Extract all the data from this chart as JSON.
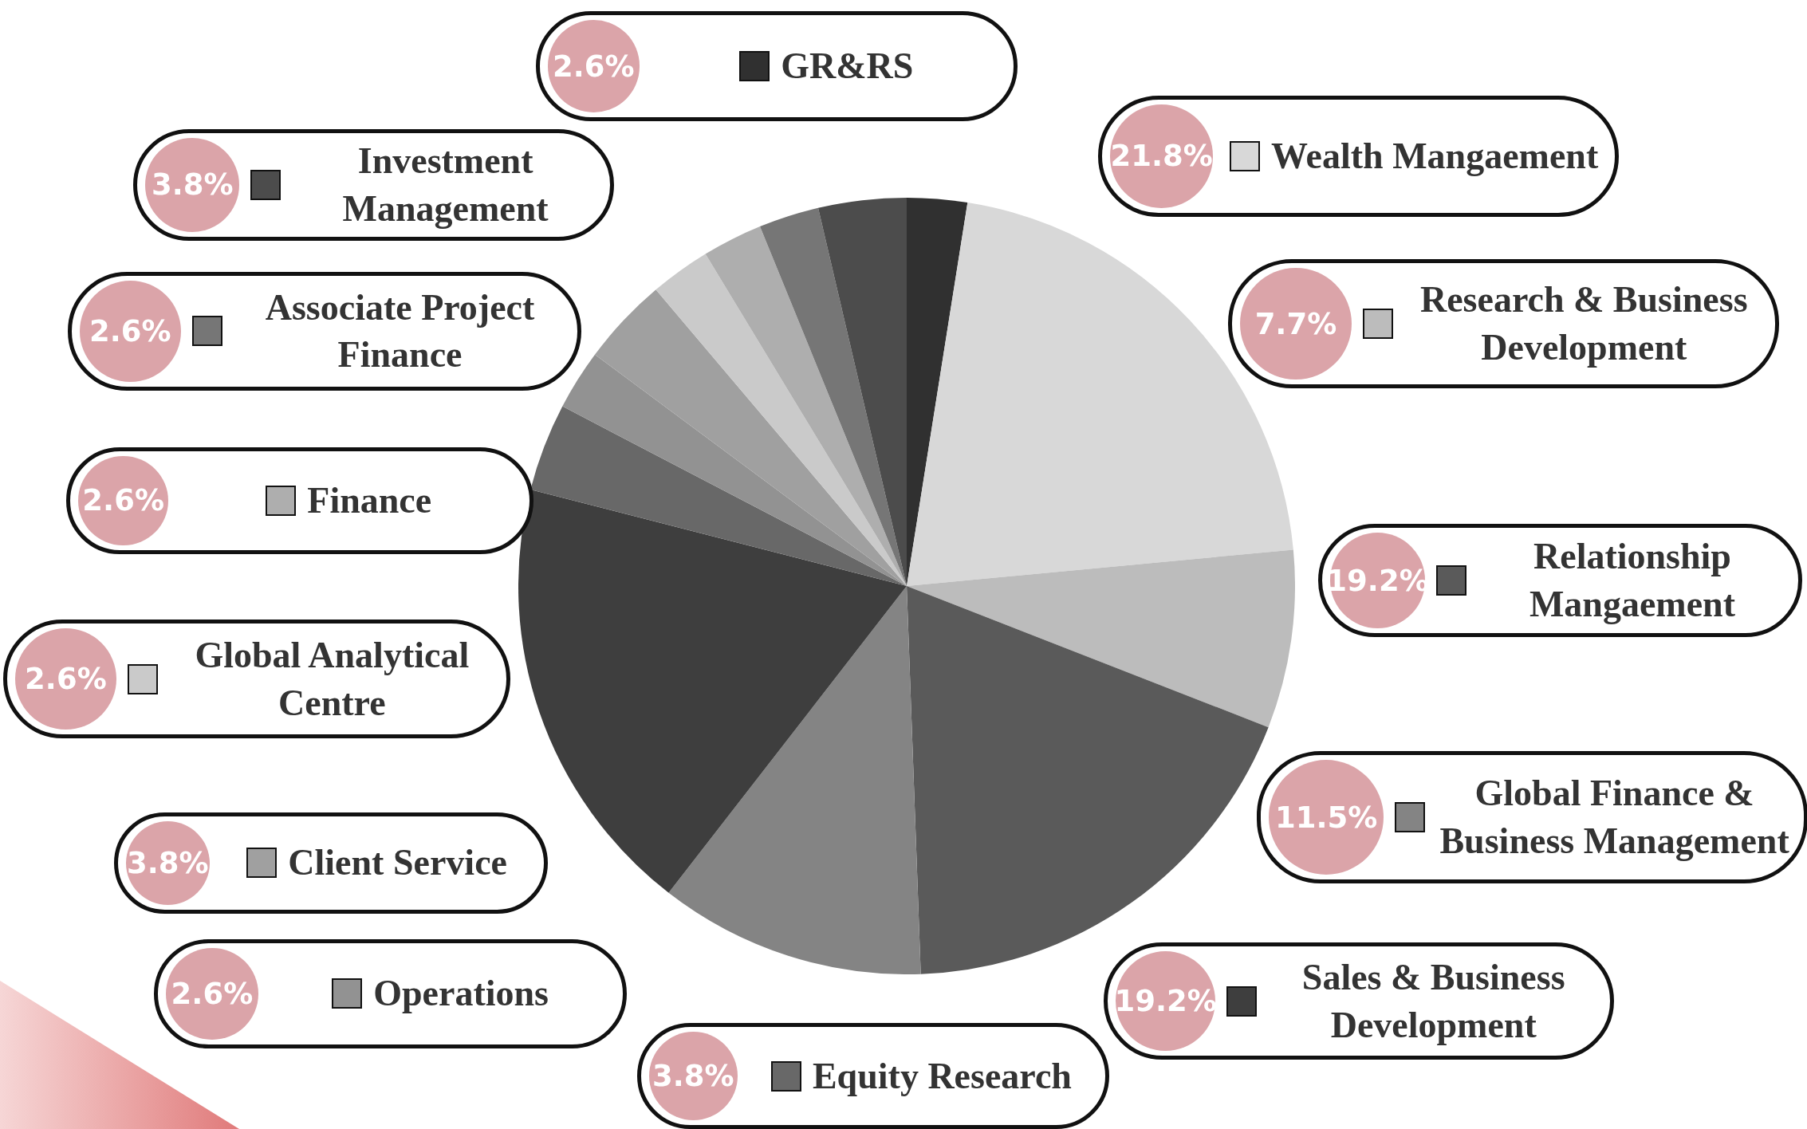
{
  "chart_data": {
    "type": "pie",
    "categories": [
      "GR&RS",
      "Wealth Mangaement",
      "Research & Business Development",
      "Relationship Mangaement",
      "Global Finance & Business Management",
      "Sales & Business Development",
      "Equity Research",
      "Operations",
      "Client Service",
      "Global Analytical Centre",
      "Finance",
      "Associate Project Finance",
      "Investment Management"
    ],
    "values": [
      2.6,
      21.8,
      7.7,
      19.2,
      11.5,
      19.2,
      3.8,
      2.6,
      3.8,
      2.6,
      2.6,
      2.6,
      3.8
    ],
    "value_labels": [
      "2.6%",
      "21.8%",
      "7.7%",
      "19.2%",
      "11.5%",
      "19.2%",
      "3.8%",
      "2.6%",
      "3.8%",
      "2.6%",
      "2.6%",
      "2.6%",
      "3.8%"
    ],
    "colors": [
      "#303030",
      "#d8d8d8",
      "#bcbcbc",
      "#5a5a5a",
      "#848484",
      "#3e3e3e",
      "#686868",
      "#929292",
      "#a0a0a0",
      "#cacaca",
      "#aeaeae",
      "#767676",
      "#4c4c4c"
    ],
    "legend": "right"
  }
}
